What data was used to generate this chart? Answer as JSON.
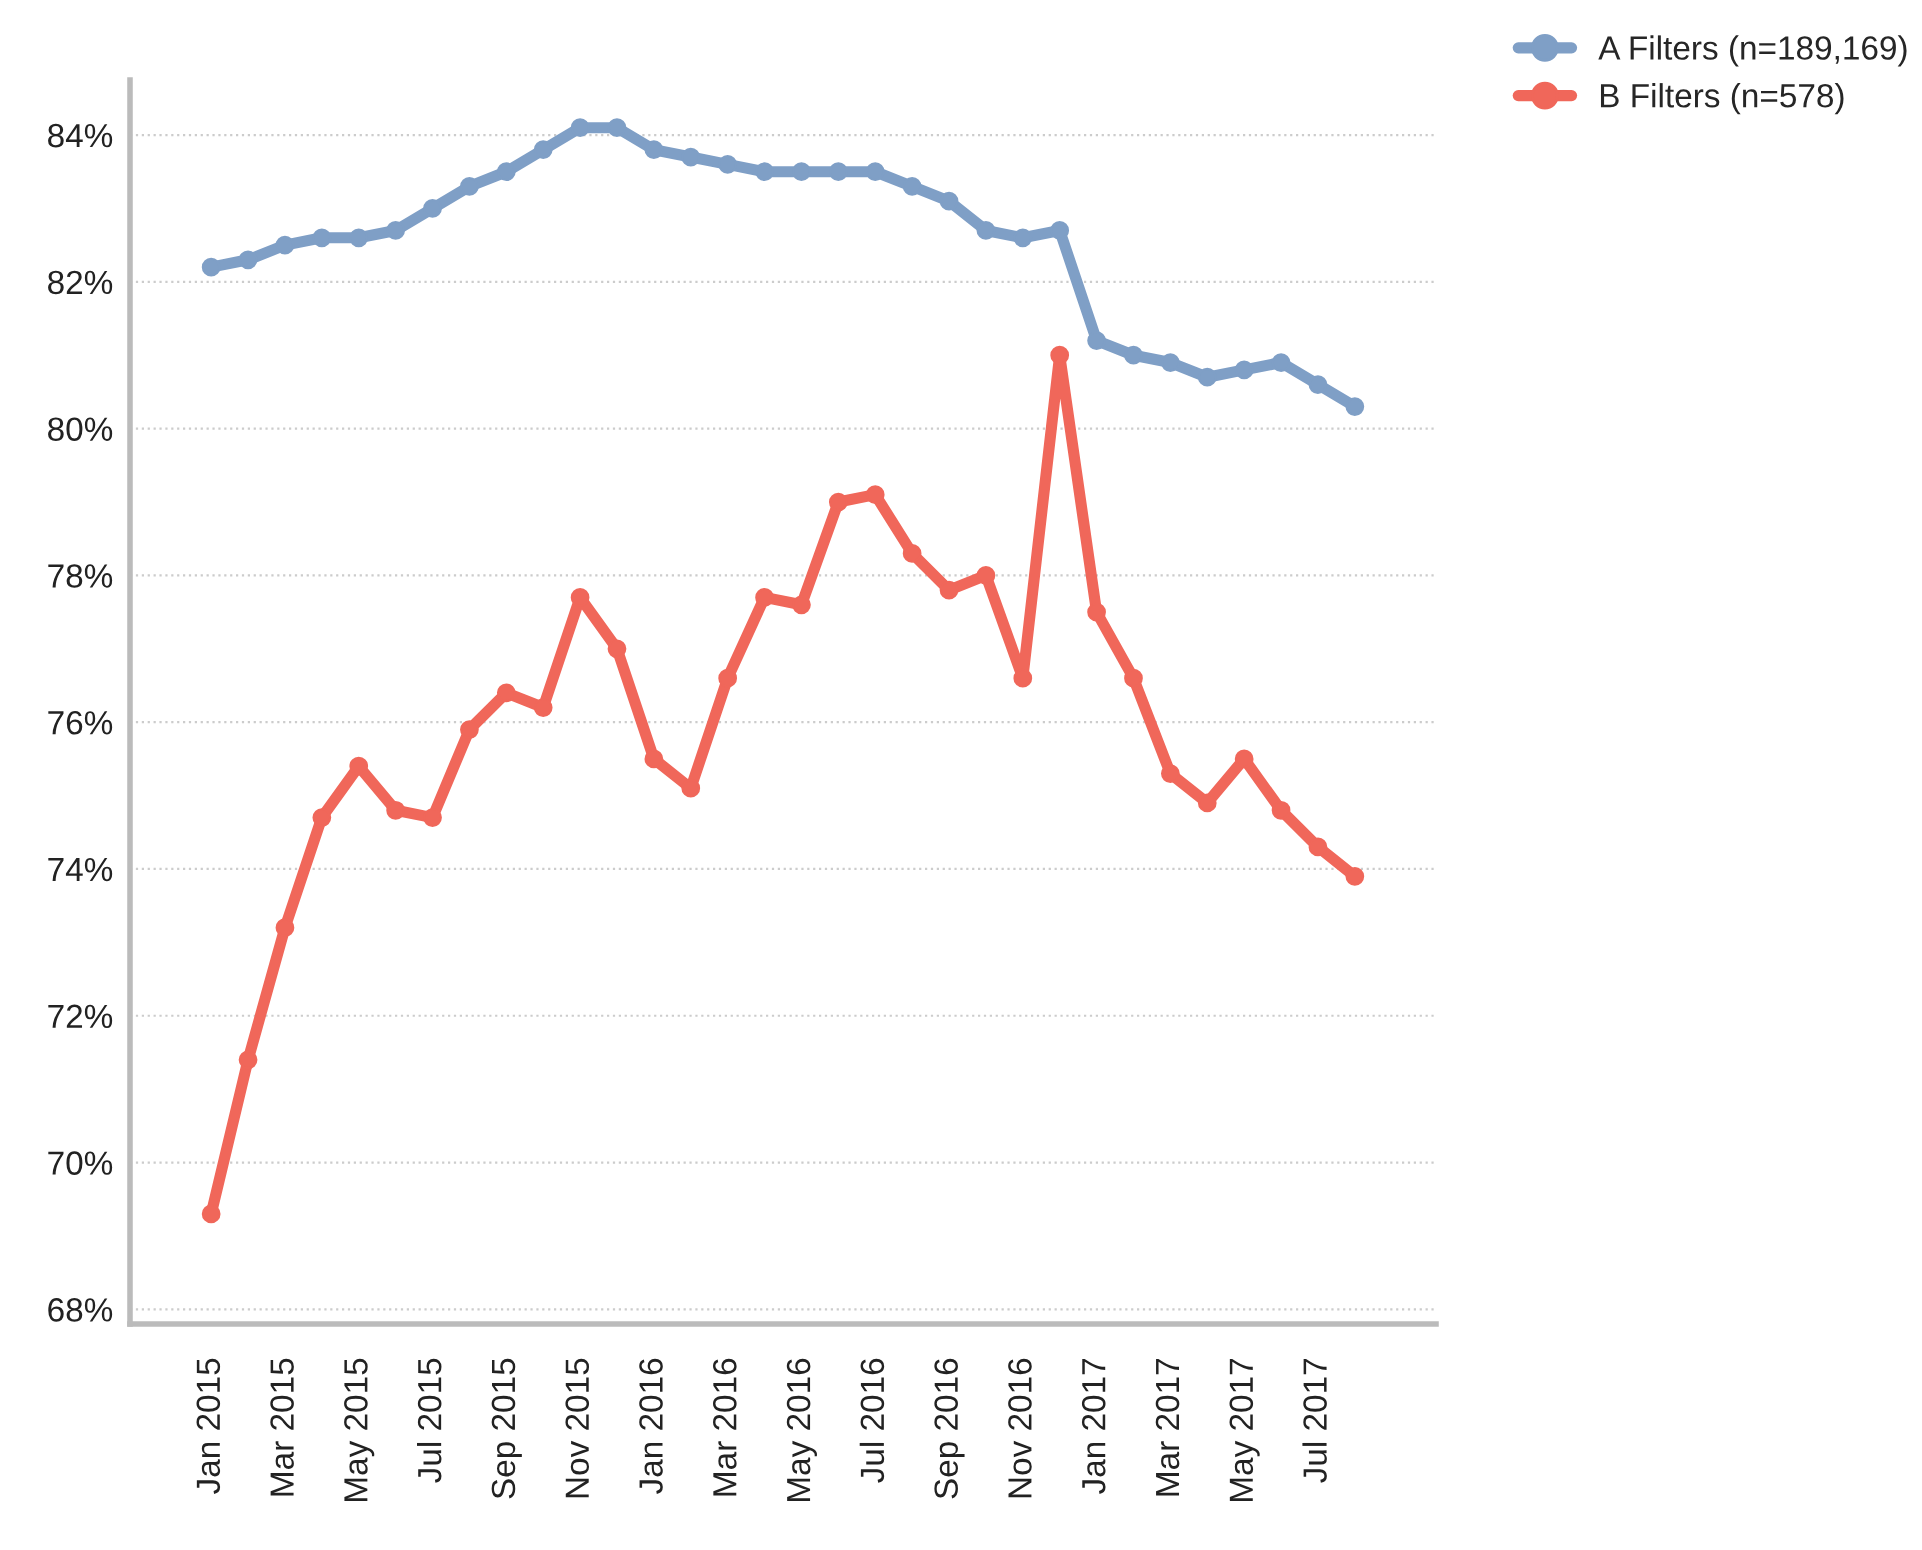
{
  "chart_data": {
    "type": "line",
    "categories": [
      "Jan 2015",
      null,
      "Mar 2015",
      null,
      "May 2015",
      null,
      "Jul 2015",
      null,
      "Sep 2015",
      null,
      "Nov 2015",
      null,
      "Jan 2016",
      null,
      "Mar 2016",
      null,
      "May 2016",
      null,
      "Jul 2016",
      null,
      "Sep 2016",
      null,
      "Nov 2016",
      null,
      "Jan 2017",
      null,
      "Mar 2017",
      null,
      "May 2017",
      null,
      "Jul 2017",
      null
    ],
    "series": [
      {
        "name": "A Filters (n=189,169)",
        "color": "#7f9fc6",
        "values": [
          82.2,
          82.3,
          82.5,
          82.6,
          82.6,
          82.7,
          83.0,
          83.3,
          83.5,
          83.8,
          84.1,
          84.1,
          83.8,
          83.7,
          83.6,
          83.5,
          83.5,
          83.5,
          83.5,
          83.3,
          83.1,
          82.7,
          82.6,
          82.7,
          81.2,
          81.0,
          80.9,
          80.7,
          80.8,
          80.9,
          80.6,
          80.3
        ]
      },
      {
        "name": "B Filters (n=578)",
        "color": "#f0675a",
        "values": [
          69.3,
          71.4,
          73.2,
          74.7,
          75.4,
          74.8,
          74.7,
          75.9,
          76.4,
          76.2,
          77.7,
          77.0,
          75.5,
          75.1,
          76.6,
          77.7,
          77.6,
          79.0,
          79.1,
          78.3,
          77.8,
          78.0,
          76.6,
          81.0,
          77.5,
          76.6,
          75.3,
          74.9,
          75.5,
          74.8,
          74.3,
          73.9
        ]
      }
    ],
    "ylim": [
      67.8,
      84.75
    ],
    "yticks": [
      {
        "value": 68,
        "label": "68%"
      },
      {
        "value": 70,
        "label": "70%"
      },
      {
        "value": 72,
        "label": "72%"
      },
      {
        "value": 74,
        "label": "74%"
      },
      {
        "value": 76,
        "label": "76%"
      },
      {
        "value": 78,
        "label": "78%"
      },
      {
        "value": 80,
        "label": "80%"
      },
      {
        "value": 82,
        "label": "82%"
      },
      {
        "value": 84,
        "label": "84%"
      }
    ],
    "grid": "y",
    "legend": "top right",
    "marker": "circle",
    "line_style": "solid"
  }
}
